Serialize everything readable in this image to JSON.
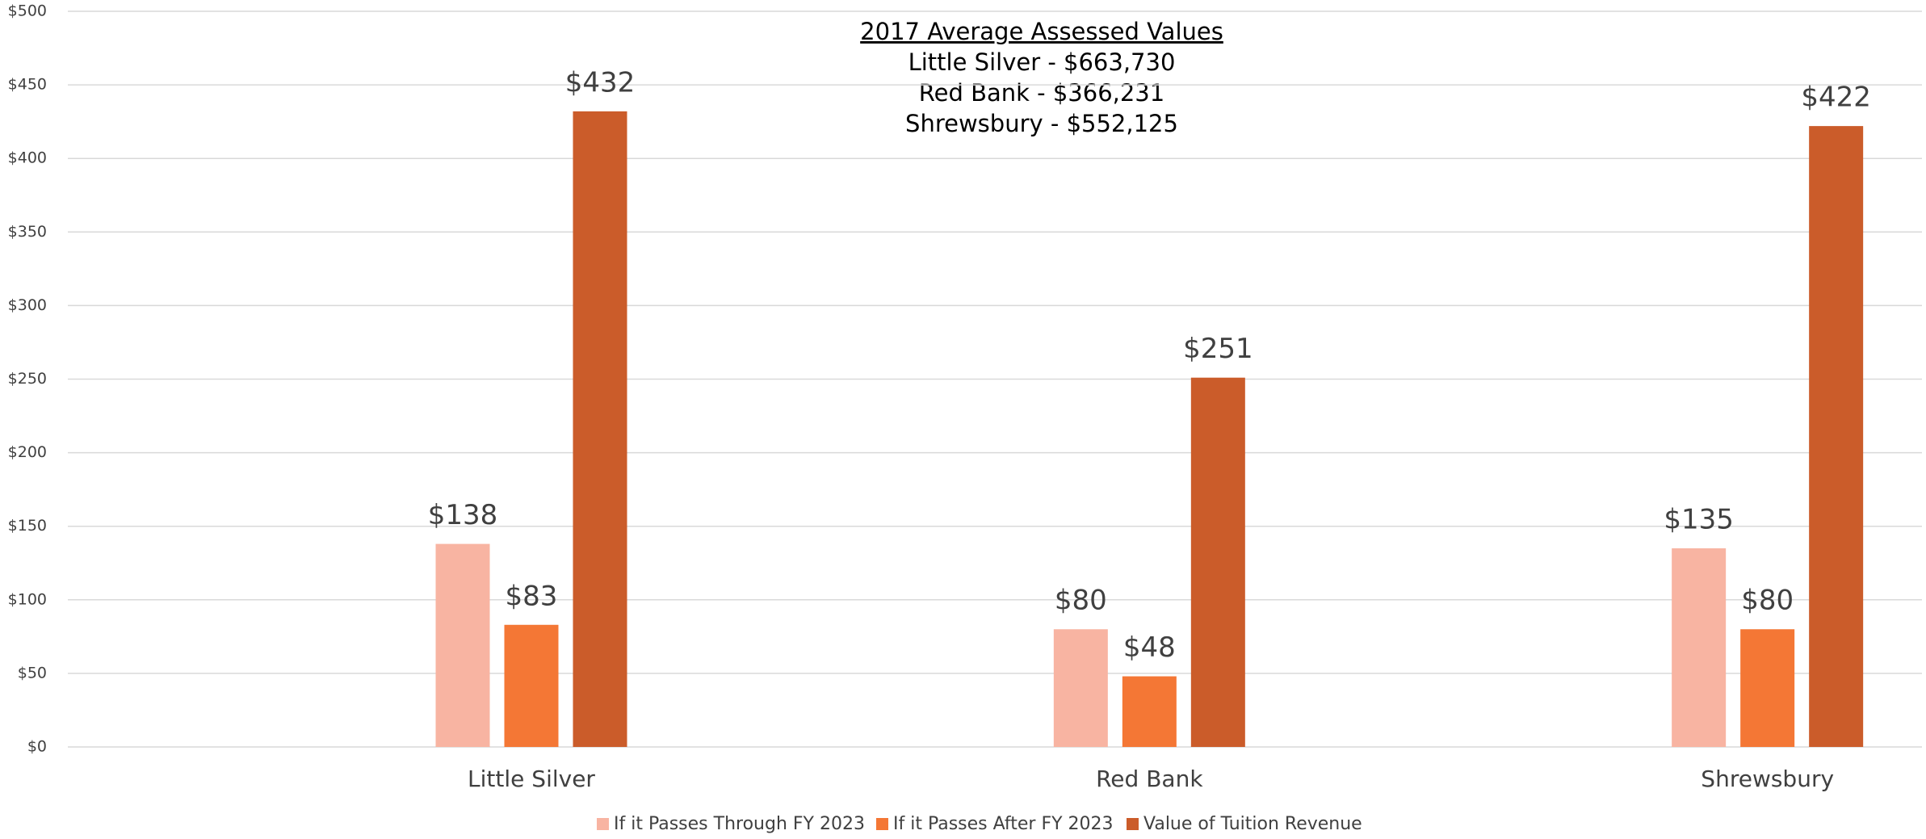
{
  "chart_data": {
    "type": "bar",
    "annotations": [
      "2017 Average Assessed Values",
      "Little Silver - $663,730",
      "Red Bank - $366,231",
      "Shrewsbury - $552,125"
    ],
    "categories": [
      "Little Silver",
      "Red Bank",
      "Shrewsbury"
    ],
    "series": [
      {
        "name": "If it Passes Through FY 2023",
        "color": "#f8b4a2",
        "values": [
          138,
          80,
          135
        ],
        "value_labels": [
          "$138",
          "$80",
          "$135"
        ]
      },
      {
        "name": "If it Passes After FY 2023",
        "color": "#f47735",
        "values": [
          83,
          48,
          80
        ],
        "value_labels": [
          "$83",
          "$48",
          "$80"
        ]
      },
      {
        "name": "Value of Tuition Revenue",
        "color": "#cb5c2a",
        "values": [
          432,
          251,
          422
        ],
        "value_labels": [
          "$432",
          "$251",
          "$422"
        ]
      }
    ],
    "ylim": [
      0,
      500
    ],
    "yticks": [
      {
        "value": 0,
        "label": "$0"
      },
      {
        "value": 50,
        "label": "$50"
      },
      {
        "value": 100,
        "label": "$100"
      },
      {
        "value": 150,
        "label": "$150"
      },
      {
        "value": 200,
        "label": "$200"
      },
      {
        "value": 250,
        "label": "$250"
      },
      {
        "value": 300,
        "label": "$300"
      },
      {
        "value": 350,
        "label": "$350"
      },
      {
        "value": 400,
        "label": "$400"
      },
      {
        "value": 450,
        "label": "$450"
      },
      {
        "value": 500,
        "label": "$500"
      }
    ],
    "grid": true,
    "legend": "bottom"
  }
}
